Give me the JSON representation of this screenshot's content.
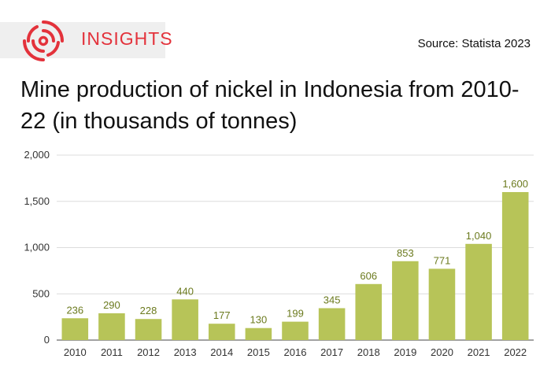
{
  "brand": {
    "name": "INSIGHTS",
    "logo_icon": "concentric-arcs-icon",
    "color": "#e3323b"
  },
  "source": {
    "label": "Source:",
    "value": "Statista 2023"
  },
  "title": "Mine production of nickel in Indonesia from 2010-22 (in thousands of tonnes)",
  "chart_data": {
    "type": "bar",
    "title": "Mine production of nickel in Indonesia from 2010-22 (in thousands of tonnes)",
    "categories": [
      "2010",
      "2011",
      "2012",
      "2013",
      "2014",
      "2015",
      "2016",
      "2017",
      "2018",
      "2019",
      "2020",
      "2021",
      "2022"
    ],
    "values": [
      236,
      290,
      228,
      440,
      177,
      130,
      199,
      345,
      606,
      853,
      771,
      1040,
      1600
    ],
    "data_labels": [
      "236",
      "290",
      "228",
      "440",
      "177",
      "130",
      "199",
      "345",
      "606",
      "853",
      "771",
      "1,040",
      "1,600"
    ],
    "y_ticks": [
      0,
      500,
      1000,
      1500,
      2000
    ],
    "y_tick_labels": [
      "0",
      "500",
      "1,000",
      "1,500",
      "2,000"
    ],
    "ylim": [
      0,
      2000
    ],
    "xlabel": "",
    "ylabel": "",
    "grid": true,
    "bar_color": "#b7c458",
    "label_color": "#6b7a1e"
  }
}
